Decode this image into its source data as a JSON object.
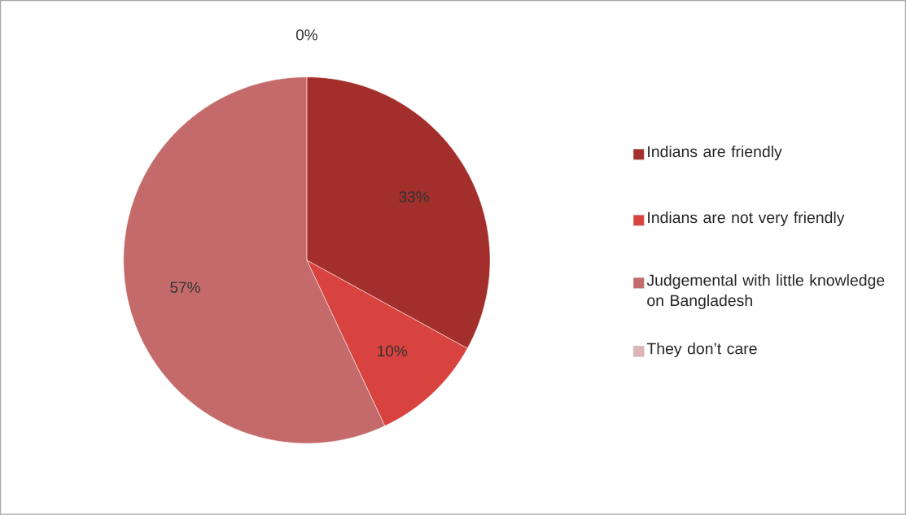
{
  "chart_data": {
    "type": "pie",
    "categories": [
      "Indians are friendly",
      "Indians are not very friendly",
      "Judgemental with little knowledge on Bangladesh",
      "They don’t  care"
    ],
    "values": [
      33,
      10,
      57,
      0
    ],
    "value_labels": [
      "33%",
      "10%",
      "57%",
      "0%"
    ],
    "colors": [
      "#a32f2c",
      "#d8423f",
      "#c46a6a",
      "#dfb4b4"
    ],
    "legend": "right"
  }
}
